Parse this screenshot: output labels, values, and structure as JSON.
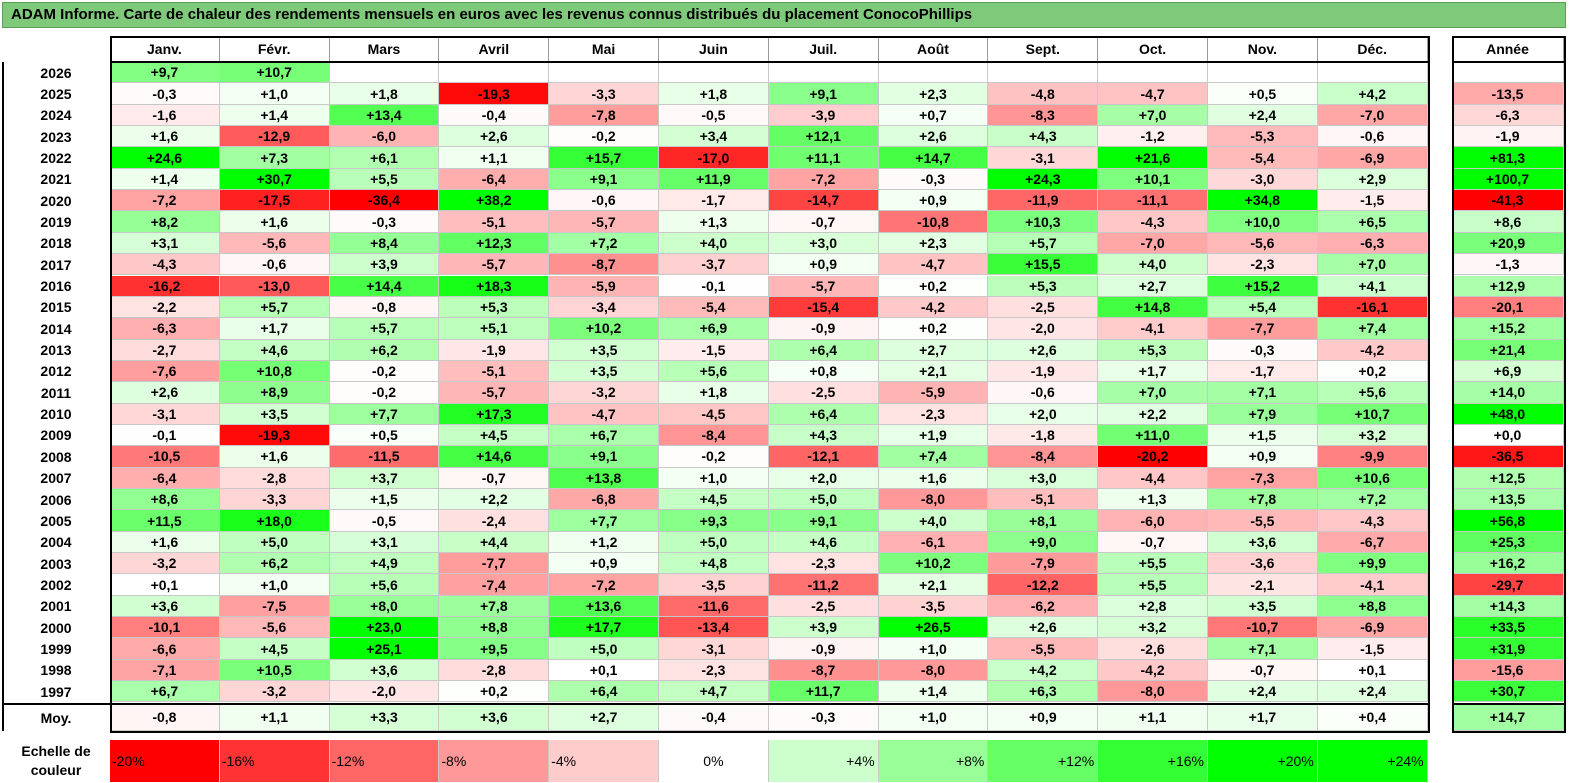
{
  "title": "ADAM Informe. Carte de chaleur des rendements mensuels en euros avec les revenus connus distribués du placement ConocoPhillips",
  "chart_data": {
    "type": "heatmap",
    "title": "ADAM Informe. Carte de chaleur des rendements mensuels en euros avec les revenus connus distribués du placement ConocoPhillips",
    "months": [
      "Janv.",
      "Févr.",
      "Mars",
      "Avril",
      "Mai",
      "Juin",
      "Juil.",
      "Août",
      "Sept.",
      "Oct.",
      "Nov.",
      "Déc."
    ],
    "annual_label": "Année",
    "rows": [
      {
        "year": "2026",
        "values": [
          "+9,7",
          "+10,7",
          "",
          "",
          "",
          "",
          "",
          "",
          "",
          "",
          "",
          ""
        ],
        "annual": ""
      },
      {
        "year": "2025",
        "values": [
          "-0,3",
          "+1,0",
          "+1,8",
          "-19,3",
          "-3,3",
          "+1,8",
          "+9,1",
          "+2,3",
          "-4,8",
          "-4,7",
          "+0,5",
          "+4,2"
        ],
        "annual": "-13,5"
      },
      {
        "year": "2024",
        "values": [
          "-1,6",
          "+1,4",
          "+13,4",
          "-0,4",
          "-7,8",
          "-0,5",
          "-3,9",
          "+0,7",
          "-8,3",
          "+7,0",
          "+2,4",
          "-7,0"
        ],
        "annual": "-6,3"
      },
      {
        "year": "2023",
        "values": [
          "+1,6",
          "-12,9",
          "-6,0",
          "+2,6",
          "-0,2",
          "+3,4",
          "+12,1",
          "+2,6",
          "+4,3",
          "-1,2",
          "-5,3",
          "-0,6"
        ],
        "annual": "-1,9"
      },
      {
        "year": "2022",
        "values": [
          "+24,6",
          "+7,3",
          "+6,1",
          "+1,1",
          "+15,7",
          "-17,0",
          "+11,1",
          "+14,7",
          "-3,1",
          "+21,6",
          "-5,4",
          "-6,9"
        ],
        "annual": "+81,3"
      },
      {
        "year": "2021",
        "values": [
          "+1,4",
          "+30,7",
          "+5,5",
          "-6,4",
          "+9,1",
          "+11,9",
          "-7,2",
          "-0,3",
          "+24,3",
          "+10,1",
          "-3,0",
          "+2,9"
        ],
        "annual": "+100,7"
      },
      {
        "year": "2020",
        "values": [
          "-7,2",
          "-17,5",
          "-36,4",
          "+38,2",
          "-0,6",
          "-1,7",
          "-14,7",
          "+0,9",
          "-11,9",
          "-11,1",
          "+34,8",
          "-1,5"
        ],
        "annual": "-41,3"
      },
      {
        "year": "2019",
        "values": [
          "+8,2",
          "+1,6",
          "-0,3",
          "-5,1",
          "-5,7",
          "+1,3",
          "-0,7",
          "-10,8",
          "+10,3",
          "-4,3",
          "+10,0",
          "+6,5"
        ],
        "annual": "+8,6"
      },
      {
        "year": "2018",
        "values": [
          "+3,1",
          "-5,6",
          "+8,4",
          "+12,3",
          "+7,2",
          "+4,0",
          "+3,0",
          "+2,3",
          "+5,7",
          "-7,0",
          "-5,6",
          "-6,3"
        ],
        "annual": "+20,9"
      },
      {
        "year": "2017",
        "values": [
          "-4,3",
          "-0,6",
          "+3,9",
          "-5,7",
          "-8,7",
          "-3,7",
          "+0,9",
          "-4,7",
          "+15,5",
          "+4,0",
          "-2,3",
          "+7,0"
        ],
        "annual": "-1,3"
      },
      {
        "year": "2016",
        "values": [
          "-16,2",
          "-13,0",
          "+14,4",
          "+18,3",
          "-5,9",
          "-0,1",
          "-5,7",
          "+0,2",
          "+5,3",
          "+2,7",
          "+15,2",
          "+4,1"
        ],
        "annual": "+12,9"
      },
      {
        "year": "2015",
        "values": [
          "-2,2",
          "+5,7",
          "-0,8",
          "+5,3",
          "-3,4",
          "-5,4",
          "-15,4",
          "-4,2",
          "-2,5",
          "+14,8",
          "+5,4",
          "-16,1"
        ],
        "annual": "-20,1"
      },
      {
        "year": "2014",
        "values": [
          "-6,3",
          "+1,7",
          "+5,7",
          "+5,1",
          "+10,2",
          "+6,9",
          "-0,9",
          "+0,2",
          "-2,0",
          "-4,1",
          "-7,7",
          "+7,4"
        ],
        "annual": "+15,2"
      },
      {
        "year": "2013",
        "values": [
          "-2,7",
          "+4,6",
          "+6,2",
          "-1,9",
          "+3,5",
          "-1,5",
          "+6,4",
          "+2,7",
          "+2,6",
          "+5,3",
          "-0,3",
          "-4,2"
        ],
        "annual": "+21,4"
      },
      {
        "year": "2012",
        "values": [
          "-7,6",
          "+10,8",
          "-0,2",
          "-5,1",
          "+3,5",
          "+5,6",
          "+0,8",
          "+2,1",
          "-1,9",
          "+1,7",
          "-1,7",
          "+0,2"
        ],
        "annual": "+6,9"
      },
      {
        "year": "2011",
        "values": [
          "+2,6",
          "+8,9",
          "-0,2",
          "-5,7",
          "-3,2",
          "+1,8",
          "-2,5",
          "-5,9",
          "-0,6",
          "+7,0",
          "+7,1",
          "+5,6"
        ],
        "annual": "+14,0"
      },
      {
        "year": "2010",
        "values": [
          "-3,1",
          "+3,5",
          "+7,7",
          "+17,3",
          "-4,7",
          "-4,5",
          "+6,4",
          "-2,3",
          "+2,0",
          "+2,2",
          "+7,9",
          "+10,7"
        ],
        "annual": "+48,0"
      },
      {
        "year": "2009",
        "values": [
          "-0,1",
          "-19,3",
          "+0,5",
          "+4,5",
          "+6,7",
          "-8,4",
          "+4,3",
          "+1,9",
          "-1,8",
          "+11,0",
          "+1,5",
          "+3,2"
        ],
        "annual": "+0,0"
      },
      {
        "year": "2008",
        "values": [
          "-10,5",
          "+1,6",
          "-11,5",
          "+14,6",
          "+9,1",
          "-0,2",
          "-12,1",
          "+7,4",
          "-8,4",
          "-20,2",
          "+0,9",
          "-9,9"
        ],
        "annual": "-36,5"
      },
      {
        "year": "2007",
        "values": [
          "-6,4",
          "-2,8",
          "+3,7",
          "-0,7",
          "+13,8",
          "+1,0",
          "+2,0",
          "+1,6",
          "+3,0",
          "-4,4",
          "-7,3",
          "+10,6"
        ],
        "annual": "+12,5"
      },
      {
        "year": "2006",
        "values": [
          "+8,6",
          "-3,3",
          "+1,5",
          "+2,2",
          "-6,8",
          "+4,5",
          "+5,0",
          "-8,0",
          "-5,1",
          "+1,3",
          "+7,8",
          "+7,2"
        ],
        "annual": "+13,5"
      },
      {
        "year": "2005",
        "values": [
          "+11,5",
          "+18,0",
          "-0,5",
          "-2,4",
          "+7,7",
          "+9,3",
          "+9,1",
          "+4,0",
          "+8,1",
          "-6,0",
          "-5,5",
          "-4,3"
        ],
        "annual": "+56,8"
      },
      {
        "year": "2004",
        "values": [
          "+1,6",
          "+5,0",
          "+3,1",
          "+4,4",
          "+1,2",
          "+5,0",
          "+4,6",
          "-6,1",
          "+9,0",
          "-0,7",
          "+3,6",
          "-6,7"
        ],
        "annual": "+25,3"
      },
      {
        "year": "2003",
        "values": [
          "-3,2",
          "+6,2",
          "+4,9",
          "-7,7",
          "+0,9",
          "+4,8",
          "-2,3",
          "+10,2",
          "-7,9",
          "+5,5",
          "-3,6",
          "+9,9"
        ],
        "annual": "+16,2"
      },
      {
        "year": "2002",
        "values": [
          "+0,1",
          "+1,0",
          "+5,6",
          "-7,4",
          "-7,2",
          "-3,5",
          "-11,2",
          "+2,1",
          "-12,2",
          "+5,5",
          "-2,1",
          "-4,1"
        ],
        "annual": "-29,7"
      },
      {
        "year": "2001",
        "values": [
          "+3,6",
          "-7,5",
          "+8,0",
          "+7,8",
          "+13,6",
          "-11,6",
          "-2,5",
          "-3,5",
          "-6,2",
          "+2,8",
          "+3,5",
          "+8,8"
        ],
        "annual": "+14,3"
      },
      {
        "year": "2000",
        "values": [
          "-10,1",
          "-5,6",
          "+23,0",
          "+8,8",
          "+17,7",
          "-13,4",
          "+3,9",
          "+26,5",
          "+2,6",
          "+3,2",
          "-10,7",
          "-6,9"
        ],
        "annual": "+33,5"
      },
      {
        "year": "1999",
        "values": [
          "-6,6",
          "+4,5",
          "+25,1",
          "+9,5",
          "+5,0",
          "-3,1",
          "-0,9",
          "+1,0",
          "-5,5",
          "-2,6",
          "+7,1",
          "-1,5"
        ],
        "annual": "+31,9"
      },
      {
        "year": "1998",
        "values": [
          "-7,1",
          "+10,5",
          "+3,6",
          "-2,8",
          "+0,1",
          "-2,3",
          "-8,7",
          "-8,0",
          "+4,2",
          "-4,2",
          "-0,7",
          "+0,1"
        ],
        "annual": "-15,6"
      },
      {
        "year": "1997",
        "values": [
          "+6,7",
          "-3,2",
          "-2,0",
          "+0,2",
          "+6,4",
          "+4,7",
          "+11,7",
          "+1,4",
          "+6,3",
          "-8,0",
          "+2,4",
          "+2,4"
        ],
        "annual": "+30,7"
      }
    ],
    "average": {
      "year": "Moy.",
      "values": [
        "-0,8",
        "+1,1",
        "+3,3",
        "+3,6",
        "+2,7",
        "-0,4",
        "-0,3",
        "+1,0",
        "+0,9",
        "+1,1",
        "+1,7",
        "+0,4"
      ],
      "annual": "+14,7"
    },
    "scale_label": "Echelle de couleur",
    "scale": [
      "-20%",
      "-16%",
      "-12%",
      "-8%",
      "-4%",
      "0%",
      "+4%",
      "+8%",
      "+12%",
      "+16%",
      "+20%",
      "+24%"
    ],
    "colors": {
      "negative": "#ff0000",
      "neutral": "#ffffff",
      "positive": "#00ff00",
      "title_bg": "#7fca7a"
    }
  }
}
